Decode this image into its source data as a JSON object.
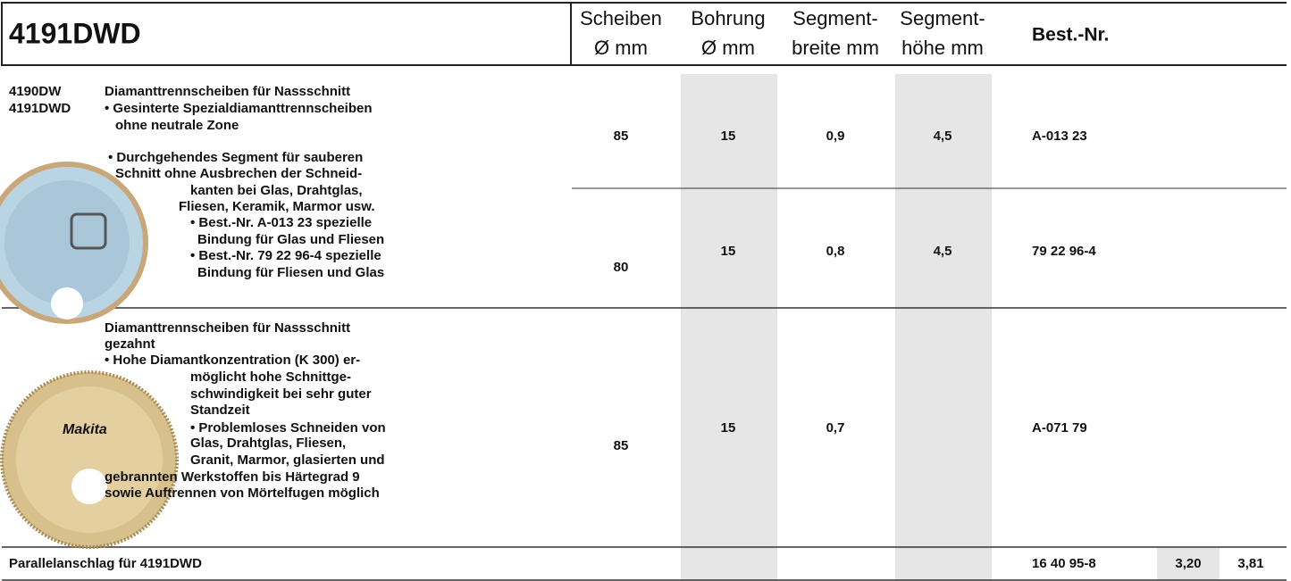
{
  "header": {
    "title": "4191DWD",
    "columns": [
      [
        "Scheiben",
        "Ø mm"
      ],
      [
        "Bohrung",
        "Ø mm"
      ],
      [
        "Segment-",
        "breite mm"
      ],
      [
        "Segment-",
        "höhe mm"
      ],
      [
        "Best.-Nr."
      ]
    ]
  },
  "rows": [
    {
      "models": [
        "4190DW",
        "4191DWD"
      ],
      "description": [
        "Diamanttrennscheiben für Nassschnitt",
        "• Gesinterte Spezialdiamanttrennscheiben",
        "ohne neutrale Zone",
        "• Durchgehendes Segment für sauberen",
        "Schnitt ohne Ausbrechen der Schneid-",
        "kanten bei Glas, Drahtglas,",
        "Fliesen, Keramik, Marmor usw.",
        "• Best.-Nr. A-013 23 spezielle",
        "Bindung für Glas und Fliesen",
        "• Best.-Nr. 79 22 96-4 spezielle",
        "Bindung für Fliesen und Glas"
      ],
      "entries": [
        [
          "85",
          "15",
          "0,9",
          "4,5",
          "A-013 23"
        ],
        [
          "80",
          "15",
          "0,8",
          "4,5",
          "79 22 96-4"
        ]
      ]
    },
    {
      "models": [],
      "description": [
        "Diamanttrennscheiben für Nassschnitt",
        "gezahnt",
        "• Hohe Diamantkonzentration (K 300) er-",
        "möglicht hohe Schnittge-",
        "schwindigkeit bei sehr guter",
        "Standzeit",
        "• Problemloses Schneiden von",
        "Glas, Drahtglas, Fliesen,",
        "Granit, Marmor, glasierten und",
        "gebrannten Werkstoffen bis Härtegrad 9",
        "sowie Auftrennen von Mörtelfugen möglich"
      ],
      "entries": [
        [
          "85",
          "15",
          "0,7",
          "",
          "A-071 79"
        ]
      ]
    }
  ],
  "accessory": {
    "label": "Parallelanschlag für 4191DWD",
    "best_nr": "16 40 95-8",
    "price_1": "3,20",
    "price_2": "3,81"
  }
}
